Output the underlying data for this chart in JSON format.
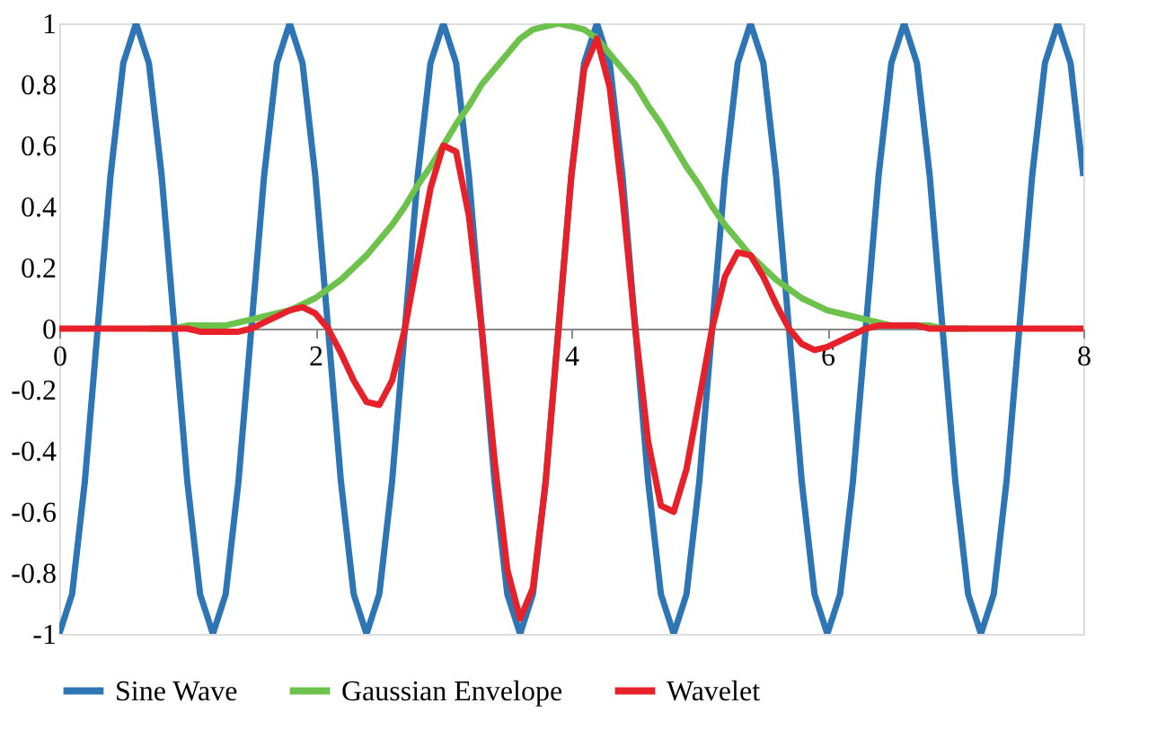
{
  "chart_data": {
    "type": "line",
    "x": [
      0,
      0.1,
      0.2,
      0.3,
      0.4,
      0.5,
      0.6,
      0.7,
      0.8,
      0.9,
      1,
      1.1,
      1.2,
      1.3,
      1.4,
      1.5,
      1.6,
      1.7,
      1.8,
      1.9,
      2,
      2.1,
      2.2,
      2.3,
      2.4,
      2.5,
      2.6,
      2.7,
      2.8,
      2.9,
      3,
      3.1,
      3.2,
      3.3,
      3.4,
      3.5,
      3.6,
      3.7,
      3.8,
      3.9,
      4,
      4.1,
      4.2,
      4.3,
      4.4,
      4.5,
      4.6,
      4.7,
      4.8,
      4.9,
      5,
      5.1,
      5.2,
      5.3,
      5.4,
      5.5,
      5.6,
      5.7,
      5.8,
      5.9,
      6,
      6.1,
      6.2,
      6.3,
      6.4,
      6.5,
      6.6,
      6.7,
      6.8,
      6.9,
      7,
      7.1,
      7.2,
      7.3,
      7.4,
      7.5,
      7.6,
      7.7,
      7.8,
      7.9,
      8
    ],
    "series": [
      {
        "name": "Sine Wave",
        "color": "#2e75b6",
        "values": [
          -1,
          -0.87,
          -0.5,
          0,
          0.5,
          0.87,
          1,
          0.87,
          0.5,
          0,
          -0.5,
          -0.87,
          -1,
          -0.87,
          -0.5,
          0,
          0.5,
          0.87,
          1,
          0.87,
          0.5,
          0,
          -0.5,
          -0.87,
          -1,
          -0.87,
          -0.5,
          0,
          0.5,
          0.87,
          1,
          0.87,
          0.5,
          0,
          -0.5,
          -0.87,
          -1,
          -0.87,
          -0.5,
          0,
          0.5,
          0.87,
          1,
          0.87,
          0.5,
          0,
          -0.5,
          -0.87,
          -1,
          -0.87,
          -0.5,
          0,
          0.5,
          0.87,
          1,
          0.87,
          0.5,
          0,
          -0.5,
          -0.87,
          -1,
          -0.87,
          -0.5,
          0,
          0.5,
          0.87,
          1,
          0.87,
          0.5,
          0,
          -0.5,
          -0.87,
          -1,
          -0.87,
          -0.5,
          0,
          0.5,
          0.87,
          1,
          0.87,
          0.5
        ]
      },
      {
        "name": "Gaussian Envelope",
        "color": "#6cc24a",
        "values": [
          null,
          null,
          null,
          null,
          null,
          null,
          null,
          0,
          0,
          0,
          0.01,
          0.01,
          0.01,
          0.01,
          0.02,
          0.03,
          0.04,
          0.05,
          0.06,
          0.08,
          0.1,
          0.13,
          0.16,
          0.2,
          0.24,
          0.29,
          0.34,
          0.4,
          0.47,
          0.53,
          0.6,
          0.67,
          0.73,
          0.8,
          0.85,
          0.9,
          0.95,
          0.98,
          0.99,
          1,
          0.99,
          0.98,
          0.95,
          0.9,
          0.85,
          0.8,
          0.73,
          0.67,
          0.6,
          0.53,
          0.47,
          0.4,
          0.34,
          0.29,
          0.24,
          0.2,
          0.16,
          0.13,
          0.1,
          0.08,
          0.06,
          0.05,
          0.04,
          0.03,
          0.02,
          0.01,
          0.01,
          0.01,
          0.01,
          0,
          0,
          0,
          null,
          null,
          null,
          null,
          null,
          null,
          null,
          null,
          null
        ]
      },
      {
        "name": "Wavelet",
        "color": "#e8202a",
        "values": [
          0,
          0,
          0,
          0,
          0,
          0,
          0,
          0,
          0,
          0,
          0,
          -0.01,
          -0.01,
          -0.01,
          -0.01,
          0,
          0.02,
          0.04,
          0.06,
          0.07,
          0.05,
          0,
          -0.08,
          -0.17,
          -0.24,
          -0.25,
          -0.17,
          0,
          0.23,
          0.46,
          0.6,
          0.58,
          0.37,
          0,
          -0.43,
          -0.79,
          -0.95,
          -0.85,
          -0.5,
          0,
          0.5,
          0.85,
          0.95,
          0.79,
          0.43,
          0,
          -0.37,
          -0.58,
          -0.6,
          -0.46,
          -0.23,
          0,
          0.17,
          0.25,
          0.24,
          0.17,
          0.08,
          0,
          -0.05,
          -0.07,
          -0.06,
          -0.04,
          -0.02,
          0,
          0.01,
          0.01,
          0.01,
          0.01,
          0,
          0,
          0,
          0,
          0,
          0,
          0,
          0,
          0,
          0,
          0,
          0,
          0
        ]
      }
    ],
    "xlim": [
      0,
      8
    ],
    "xticks": [
      0,
      2,
      4,
      6,
      8
    ],
    "ylim": [
      -1,
      1
    ],
    "yticks": [
      -1,
      -0.8,
      -0.6,
      -0.4,
      -0.2,
      0,
      0.2,
      0.4,
      0.6,
      0.8,
      1
    ],
    "grid": false,
    "legend": "bottom",
    "marker": "none",
    "line_style": "solid"
  }
}
